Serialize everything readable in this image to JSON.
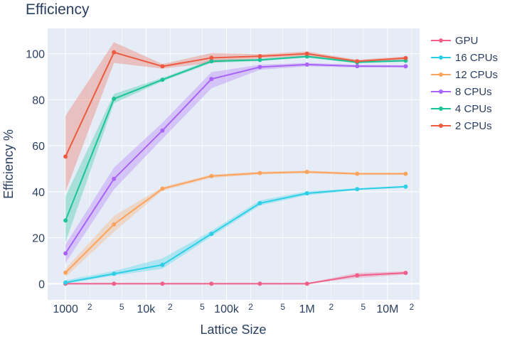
{
  "chart_data": {
    "type": "line",
    "title": "Efficiency",
    "xlabel": "Lattice Size",
    "ylabel": "Efficiency %",
    "x_scale": "log",
    "xlim": [
      600,
      25000000
    ],
    "ylim": [
      -7,
      111
    ],
    "x_ticks": [
      {
        "value": 1000,
        "label": "1000",
        "major": true
      },
      {
        "value": 2000,
        "label": "2",
        "major": false
      },
      {
        "value": 5000,
        "label": "5",
        "major": false
      },
      {
        "value": 10000,
        "label": "10k",
        "major": true
      },
      {
        "value": 20000,
        "label": "2",
        "major": false
      },
      {
        "value": 50000,
        "label": "5",
        "major": false
      },
      {
        "value": 100000,
        "label": "100k",
        "major": true
      },
      {
        "value": 200000,
        "label": "2",
        "major": false
      },
      {
        "value": 500000,
        "label": "5",
        "major": false
      },
      {
        "value": 1000000,
        "label": "1M",
        "major": true
      },
      {
        "value": 2000000,
        "label": "2",
        "major": false
      },
      {
        "value": 5000000,
        "label": "5",
        "major": false
      },
      {
        "value": 10000000,
        "label": "10M",
        "major": true
      },
      {
        "value": 20000000,
        "label": "2",
        "major": false
      }
    ],
    "y_ticks": [
      0,
      20,
      40,
      60,
      80,
      100
    ],
    "grid": true,
    "legend_position": "right",
    "x": [
      1000,
      4000,
      16000,
      65000,
      260000,
      1000000,
      4200000,
      16800000
    ],
    "series": [
      {
        "name": "GPU",
        "color": "#ef5f8a",
        "values": [
          0.0,
          0.0,
          0.0,
          0.0,
          0.0,
          0.0,
          3.6,
          4.7
        ],
        "lower": [
          0.0,
          0.0,
          0.0,
          0.0,
          0.0,
          0.0,
          2.5,
          4.0
        ],
        "upper": [
          0.3,
          0.3,
          0.3,
          0.3,
          0.3,
          0.3,
          4.7,
          5.4
        ]
      },
      {
        "name": "16 CPUs",
        "color": "#2ccfe6",
        "values": [
          0.5,
          4.3,
          8.2,
          21.7,
          35.0,
          39.3,
          41.1,
          42.2
        ],
        "lower": [
          0.0,
          3.5,
          6.5,
          20.5,
          34.0,
          38.5,
          40.7,
          41.8
        ],
        "upper": [
          1.5,
          5.5,
          11.0,
          23.0,
          36.2,
          40.2,
          41.5,
          42.6
        ]
      },
      {
        "name": "12 CPUs",
        "color": "#fca35d",
        "values": [
          4.8,
          25.8,
          41.3,
          46.8,
          48.1,
          48.6,
          47.8,
          47.8
        ],
        "lower": [
          3.0,
          22.5,
          40.5,
          46.0,
          47.5,
          48.0,
          47.3,
          47.3
        ],
        "upper": [
          6.5,
          29.5,
          42.0,
          47.5,
          48.7,
          49.2,
          48.3,
          48.3
        ]
      },
      {
        "name": "8 CPUs",
        "color": "#a964f7",
        "values": [
          13.2,
          45.6,
          66.6,
          89.0,
          94.2,
          95.3,
          94.6,
          94.5
        ],
        "lower": [
          9.0,
          41.0,
          63.0,
          85.0,
          93.0,
          94.5,
          94.0,
          94.0
        ],
        "upper": [
          17.0,
          50.5,
          70.0,
          92.0,
          95.2,
          96.0,
          95.2,
          95.0
        ]
      },
      {
        "name": "4 CPUs",
        "color": "#1ac496",
        "values": [
          27.5,
          80.4,
          88.7,
          96.7,
          97.3,
          98.8,
          96.3,
          97.0
        ],
        "lower": [
          18.0,
          78.5,
          88.0,
          96.0,
          96.8,
          98.3,
          95.8,
          96.5
        ],
        "upper": [
          38.0,
          82.5,
          89.5,
          97.5,
          97.8,
          99.3,
          96.8,
          97.5
        ]
      },
      {
        "name": "2 CPUs",
        "color": "#ec5a3f",
        "values": [
          55.3,
          100.6,
          94.5,
          98.2,
          98.9,
          100.0,
          96.7,
          98.1
        ],
        "lower": [
          40.0,
          96.0,
          93.5,
          96.0,
          98.0,
          99.0,
          96.0,
          97.5
        ],
        "upper": [
          73.0,
          105.0,
          95.5,
          100.3,
          99.8,
          101.0,
          97.4,
          98.8
        ]
      }
    ]
  }
}
